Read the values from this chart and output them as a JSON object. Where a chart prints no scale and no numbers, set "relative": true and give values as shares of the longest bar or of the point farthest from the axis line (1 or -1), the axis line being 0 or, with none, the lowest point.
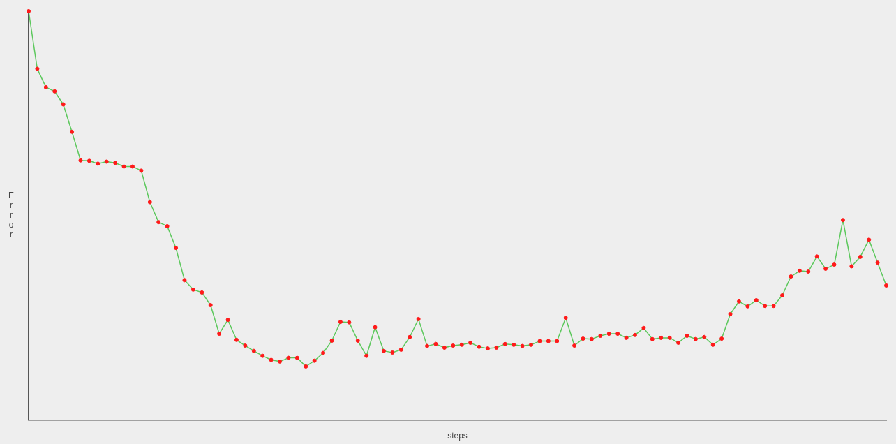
{
  "chart_data": {
    "type": "line",
    "relative": true,
    "xlabel": "steps",
    "ylabel": "Error",
    "marker": "circle",
    "line_style": "solid",
    "categories": [
      null,
      null,
      null,
      null,
      null,
      null,
      null,
      null,
      null,
      null,
      null,
      null,
      null,
      null,
      null,
      null,
      null,
      null,
      null,
      null,
      null,
      null,
      null,
      null,
      null,
      null,
      null,
      null,
      null,
      null,
      null,
      null,
      null,
      null,
      null,
      null,
      null,
      null,
      null,
      null,
      null,
      null,
      null,
      null,
      null,
      null,
      null,
      null,
      null,
      null,
      null,
      null,
      null,
      null,
      null,
      null,
      null,
      null,
      null,
      null,
      null,
      null,
      null,
      null,
      null,
      null,
      null,
      null,
      null,
      null,
      null,
      null,
      null,
      null,
      null,
      null,
      null,
      null,
      null,
      null,
      null,
      null,
      null,
      null,
      null,
      null,
      null,
      null,
      null,
      null,
      null,
      null,
      null,
      null,
      null,
      null,
      null,
      null,
      null,
      null
    ],
    "series": [
      {
        "color": "#5cc85c",
        "values": [
          1.0,
          0.859,
          0.814,
          0.804,
          0.772,
          0.705,
          0.635,
          0.634,
          0.627,
          0.632,
          0.629,
          0.62,
          0.62,
          0.61,
          0.533,
          0.484,
          0.474,
          0.421,
          0.342,
          0.319,
          0.312,
          0.281,
          0.211,
          0.245,
          0.196,
          0.182,
          0.169,
          0.157,
          0.147,
          0.143,
          0.152,
          0.152,
          0.131,
          0.145,
          0.164,
          0.194,
          0.24,
          0.239,
          0.194,
          0.157,
          0.227,
          0.169,
          0.165,
          0.172,
          0.203,
          0.247,
          0.181,
          0.186,
          0.177,
          0.182,
          0.184,
          0.189,
          0.179,
          0.175,
          0.177,
          0.186,
          0.184,
          0.181,
          0.184,
          0.193,
          0.193,
          0.193,
          0.25,
          0.182,
          0.199,
          0.198,
          0.206,
          0.211,
          0.211,
          0.201,
          0.208,
          0.225,
          0.198,
          0.201,
          0.201,
          0.189,
          0.206,
          0.198,
          0.203,
          0.184,
          0.199,
          0.259,
          0.29,
          0.278,
          0.293,
          0.279,
          0.279,
          0.305,
          0.351,
          0.365,
          0.363,
          0.4,
          0.37,
          0.38,
          0.489,
          0.376,
          0.399,
          0.441,
          0.385,
          0.329
        ]
      }
    ]
  }
}
